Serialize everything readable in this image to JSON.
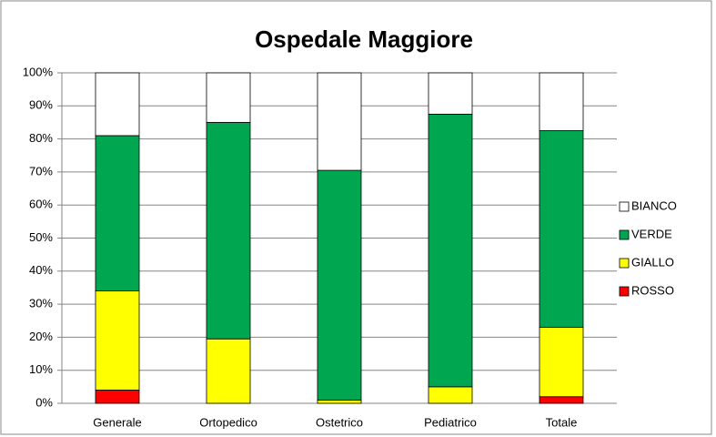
{
  "chart_data": {
    "type": "stacked_bar",
    "title": "Ospedale Maggiore",
    "categories": [
      "Generale",
      "Ortopedico",
      "Ostetrico",
      "Pediatrico",
      "Totale"
    ],
    "series": [
      {
        "name": "ROSSO",
        "color": "#ff0000",
        "values": [
          4,
          0,
          0,
          0,
          2
        ]
      },
      {
        "name": "GIALLO",
        "color": "#ffff00",
        "values": [
          30,
          19.5,
          1,
          5,
          21
        ]
      },
      {
        "name": "VERDE",
        "color": "#00a650",
        "values": [
          47,
          65.5,
          69.5,
          82.5,
          59.5
        ]
      },
      {
        "name": "BIANCO",
        "color": "#ffffff",
        "values": [
          19,
          15,
          29.5,
          12.5,
          17.5
        ]
      }
    ],
    "ylim": [
      0,
      100
    ],
    "yticks": [
      {
        "value": 0,
        "label": "0%"
      },
      {
        "value": 10,
        "label": "10%"
      },
      {
        "value": 20,
        "label": "20%"
      },
      {
        "value": 30,
        "label": "30%"
      },
      {
        "value": 40,
        "label": "40%"
      },
      {
        "value": 50,
        "label": "50%"
      },
      {
        "value": 60,
        "label": "60%"
      },
      {
        "value": 70,
        "label": "70%"
      },
      {
        "value": 80,
        "label": "80%"
      },
      {
        "value": 90,
        "label": "90%"
      },
      {
        "value": 100,
        "label": "100%"
      }
    ],
    "grid": true,
    "legend": "right"
  }
}
